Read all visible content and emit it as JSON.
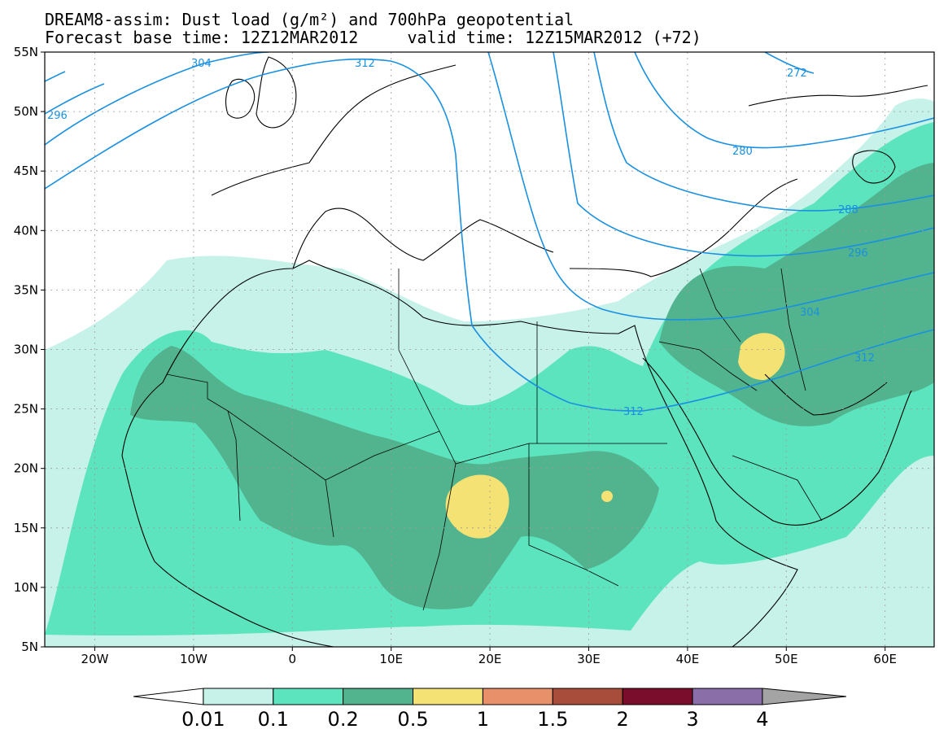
{
  "title": {
    "line1": "DREAM8-assim: Dust load (g/m²) and 700hPa geopotential",
    "line2": "Forecast base time: 12Z12MAR2012     valid time: 12Z15MAR2012 (+72)"
  },
  "axes": {
    "lat_labels": [
      "55N",
      "50N",
      "45N",
      "40N",
      "35N",
      "30N",
      "25N",
      "20N",
      "15N",
      "10N",
      "5N"
    ],
    "lon_labels": [
      "20W",
      "10W",
      "0",
      "10E",
      "20E",
      "30E",
      "40E",
      "50E",
      "60E"
    ]
  },
  "contour_labels": [
    "304",
    "296",
    "312",
    "272",
    "280",
    "288",
    "296",
    "304",
    "312",
    "312"
  ],
  "colorbar": {
    "labels": [
      "0.01",
      "0.1",
      "0.2",
      "0.5",
      "1",
      "1.5",
      "2",
      "3",
      "4"
    ],
    "colors": [
      "#ffffff",
      "#c6f2ea",
      "#5ce4be",
      "#52b48e",
      "#f5e275",
      "#e8906a",
      "#a84c3c",
      "#7a0c2c",
      "#8a6ea8",
      "#a4a4a4"
    ]
  },
  "colors": {
    "dust_low": "#c6f2ea",
    "dust_mid": "#5ce4be",
    "dust_high": "#52b48e",
    "dust_peak": "#f5e275",
    "geopotential": "#1a90e0"
  }
}
